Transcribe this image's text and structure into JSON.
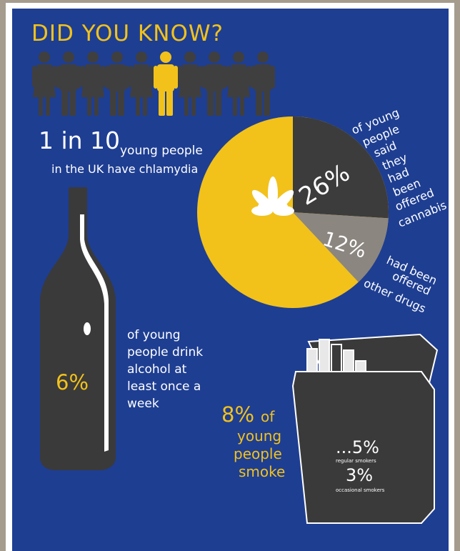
{
  "header": {
    "title": "DID YOU KNOW?"
  },
  "chlamydia": {
    "stat": "1 in 10",
    "text": [
      "young people",
      "in the UK have chlamydia"
    ]
  },
  "chart_data": {
    "type": "pie",
    "values": [
      26,
      12
    ],
    "value_labels": [
      "26%",
      "12%"
    ],
    "colors": [
      "#3c3c3c",
      "#8b8680"
    ],
    "rest_color": "#f2c21b",
    "annotations": [
      [
        "of young",
        "people",
        "said",
        "they",
        "had",
        "been",
        "offered",
        "cannabis"
      ],
      [
        "had been",
        "offered",
        "other drugs"
      ]
    ]
  },
  "alcohol": {
    "stat": "6%",
    "text": [
      "of young",
      "people drink",
      "alcohol at",
      "least once a",
      "week"
    ]
  },
  "smoking": {
    "stat": "8%",
    "text": [
      "of",
      "young",
      "people",
      "smoke"
    ],
    "regular": {
      "stat": "...5%",
      "label": "regular smokers"
    },
    "occasional": {
      "stat": "3%",
      "label": "occasional smokers"
    }
  }
}
